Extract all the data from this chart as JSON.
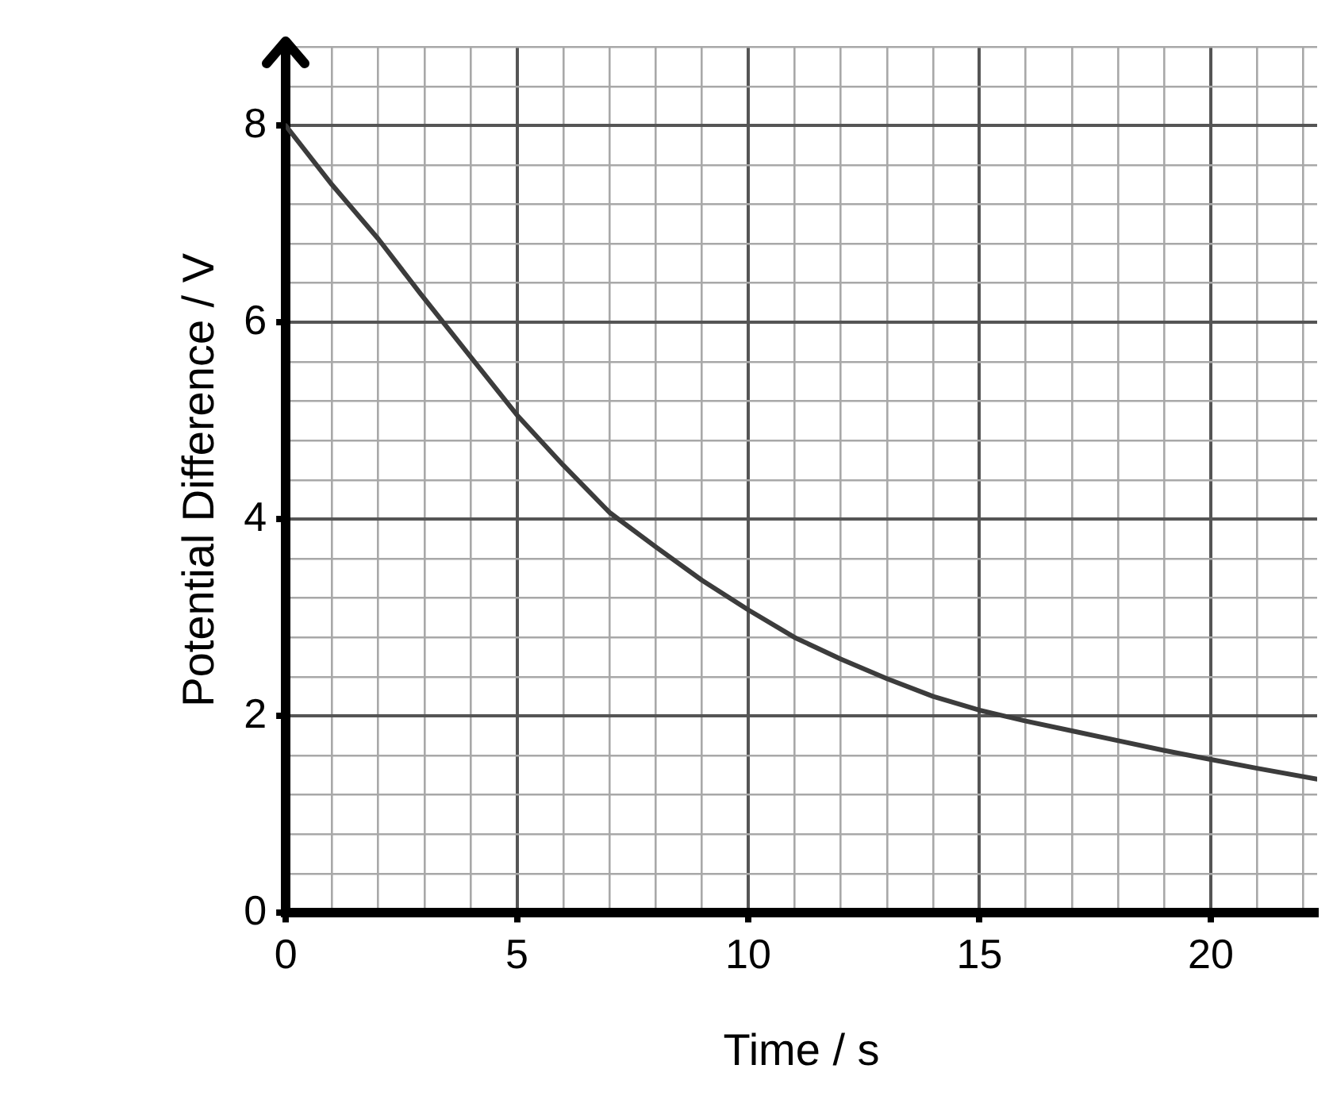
{
  "chart_data": {
    "type": "line",
    "xlabel": "Time / s",
    "ylabel": "Potential Difference / V",
    "x": [
      0,
      1,
      2,
      2.9,
      4,
      5,
      6,
      7,
      8,
      9,
      10,
      11,
      12,
      13,
      14,
      15,
      16,
      17,
      18,
      19,
      20,
      21,
      22.3
    ],
    "series": [
      {
        "color": "#3c3c3c",
        "values": [
          8,
          7.4,
          6.85,
          6.3,
          5.65,
          5.06,
          4.55,
          4.07,
          3.72,
          3.38,
          3.08,
          2.8,
          2.58,
          2.38,
          2.2,
          2.06,
          1.95,
          1.85,
          1.75,
          1.65,
          1.56,
          1.47,
          1.36
        ]
      }
    ],
    "xlim": [
      0,
      22.3
    ],
    "xticks": [
      0,
      {
        "value": 1,
        "label": null
      },
      {
        "value": 2,
        "label": null
      },
      {
        "value": 3,
        "label": null
      },
      {
        "value": 4,
        "label": null
      },
      5,
      {
        "value": 6,
        "label": null
      },
      {
        "value": 7,
        "label": null
      },
      {
        "value": 8,
        "label": null
      },
      {
        "value": 9,
        "label": null
      },
      10,
      {
        "value": 11,
        "label": null
      },
      {
        "value": 12,
        "label": null
      },
      {
        "value": 13,
        "label": null
      },
      {
        "value": 14,
        "label": null
      },
      15,
      {
        "value": 16,
        "label": null
      },
      {
        "value": 17,
        "label": null
      },
      {
        "value": 18,
        "label": null
      },
      {
        "value": 19,
        "label": null
      },
      20,
      {
        "value": 21,
        "label": null
      },
      {
        "value": 22,
        "label": null
      }
    ],
    "ylim": [
      0,
      8.8
    ],
    "yticks": [
      0,
      {
        "value": 0.4,
        "label": null
      },
      {
        "value": 0.8,
        "label": null
      },
      {
        "value": 1.2,
        "label": null
      },
      {
        "value": 1.6,
        "label": null
      },
      2,
      {
        "value": 2.4,
        "label": null
      },
      {
        "value": 2.8,
        "label": null
      },
      {
        "value": 3.2,
        "label": null
      },
      {
        "value": 3.6,
        "label": null
      },
      4,
      {
        "value": 4.4,
        "label": null
      },
      {
        "value": 4.8,
        "label": null
      },
      {
        "value": 5.2,
        "label": null
      },
      {
        "value": 5.6,
        "label": null
      },
      6,
      {
        "value": 6.4,
        "label": null
      },
      {
        "value": 6.8,
        "label": null
      },
      {
        "value": 7.2,
        "label": null
      },
      {
        "value": 7.6,
        "label": null
      },
      8,
      {
        "value": 8.4,
        "label": null
      },
      {
        "value": 8.8,
        "label": null
      }
    ],
    "grid": true,
    "legend": false,
    "marker": "none",
    "line_style": "solid"
  }
}
